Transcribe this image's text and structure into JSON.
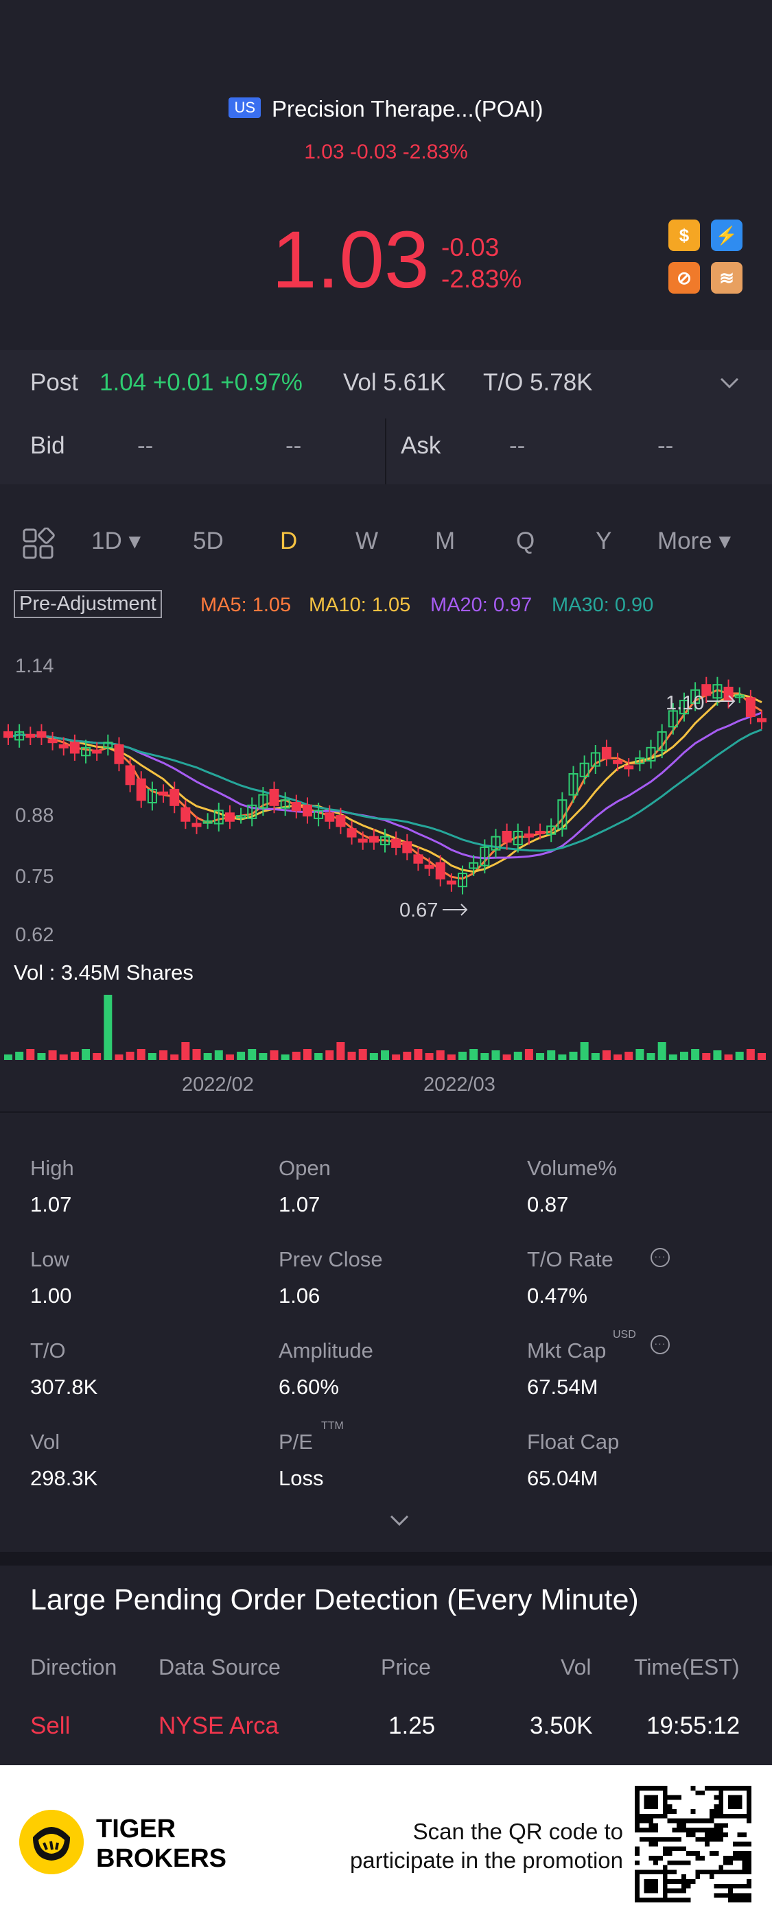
{
  "header": {
    "market_badge": "US",
    "title": "Precision Therape...(POAI)",
    "sub_quote": "1.03 -0.03 -2.83%",
    "price": "1.03",
    "change": "-0.03",
    "change_pct": "-2.83%"
  },
  "post": {
    "label": "Post",
    "value": "1.04 +0.01 +0.97%",
    "vol": "Vol 5.61K",
    "to": "T/O 5.78K"
  },
  "bidask": {
    "bid_label": "Bid",
    "bid_price": "--",
    "bid_vol": "--",
    "ask_label": "Ask",
    "ask_price": "--",
    "ask_vol": "--"
  },
  "tabs": [
    "1D",
    "5D",
    "D",
    "W",
    "M",
    "Q",
    "Y",
    "More"
  ],
  "active_tab": "D",
  "ma": {
    "pre_adjustment": "Pre-Adjustment",
    "ma5": "MA5: 1.05",
    "ma10": "MA10: 1.05",
    "ma20": "MA20: 0.97",
    "ma30": "MA30: 0.90",
    "colors": {
      "ma5": "#ff7a3d",
      "ma10": "#f5c242",
      "ma20": "#a65cf2",
      "ma30": "#26a69a"
    }
  },
  "chart_data": {
    "type": "candlestick",
    "y_ticks": [
      "1.14",
      "0.88",
      "0.75",
      "0.62"
    ],
    "high_marker": "1.10",
    "low_marker": "0.67",
    "x_labels": [
      "2022/02",
      "2022/03"
    ],
    "vol_label": "Vol  : 3.45M Shares",
    "colors": {
      "up": "#2ecc71",
      "down": "#f2364d"
    }
  },
  "stats": [
    {
      "label": "High",
      "value": "1.07"
    },
    {
      "label": "Open",
      "value": "1.07"
    },
    {
      "label": "Volume%",
      "value": "0.87"
    },
    {
      "label": "Low",
      "value": "1.00"
    },
    {
      "label": "Prev Close",
      "value": "1.06"
    },
    {
      "label": "T/O Rate",
      "value": "0.47%"
    },
    {
      "label": "T/O",
      "value": "307.8K"
    },
    {
      "label": "Amplitude",
      "value": "6.60%"
    },
    {
      "label": "Mkt Cap",
      "value": "67.54M"
    },
    {
      "label": "Vol",
      "value": "298.3K"
    },
    {
      "label": "P/E",
      "value": "Loss"
    },
    {
      "label": "Float Cap",
      "value": "65.04M"
    }
  ],
  "stat_sups": {
    "mkt_cap": "USD",
    "pe": "TTM"
  },
  "orders": {
    "title": "Large Pending Order Detection (Every Minute)",
    "headers": [
      "Direction",
      "Data Source",
      "Price",
      "Vol",
      "Time(EST)"
    ],
    "row": {
      "direction": "Sell",
      "source": "NYSE Arca",
      "price": "1.25",
      "vol": "3.50K",
      "time": "19:55:12"
    }
  },
  "footer": {
    "brand_line1": "TIGER",
    "brand_line2": "BROKERS",
    "promo_line1": "Scan the QR code to",
    "promo_line2": "participate in the promotion"
  }
}
